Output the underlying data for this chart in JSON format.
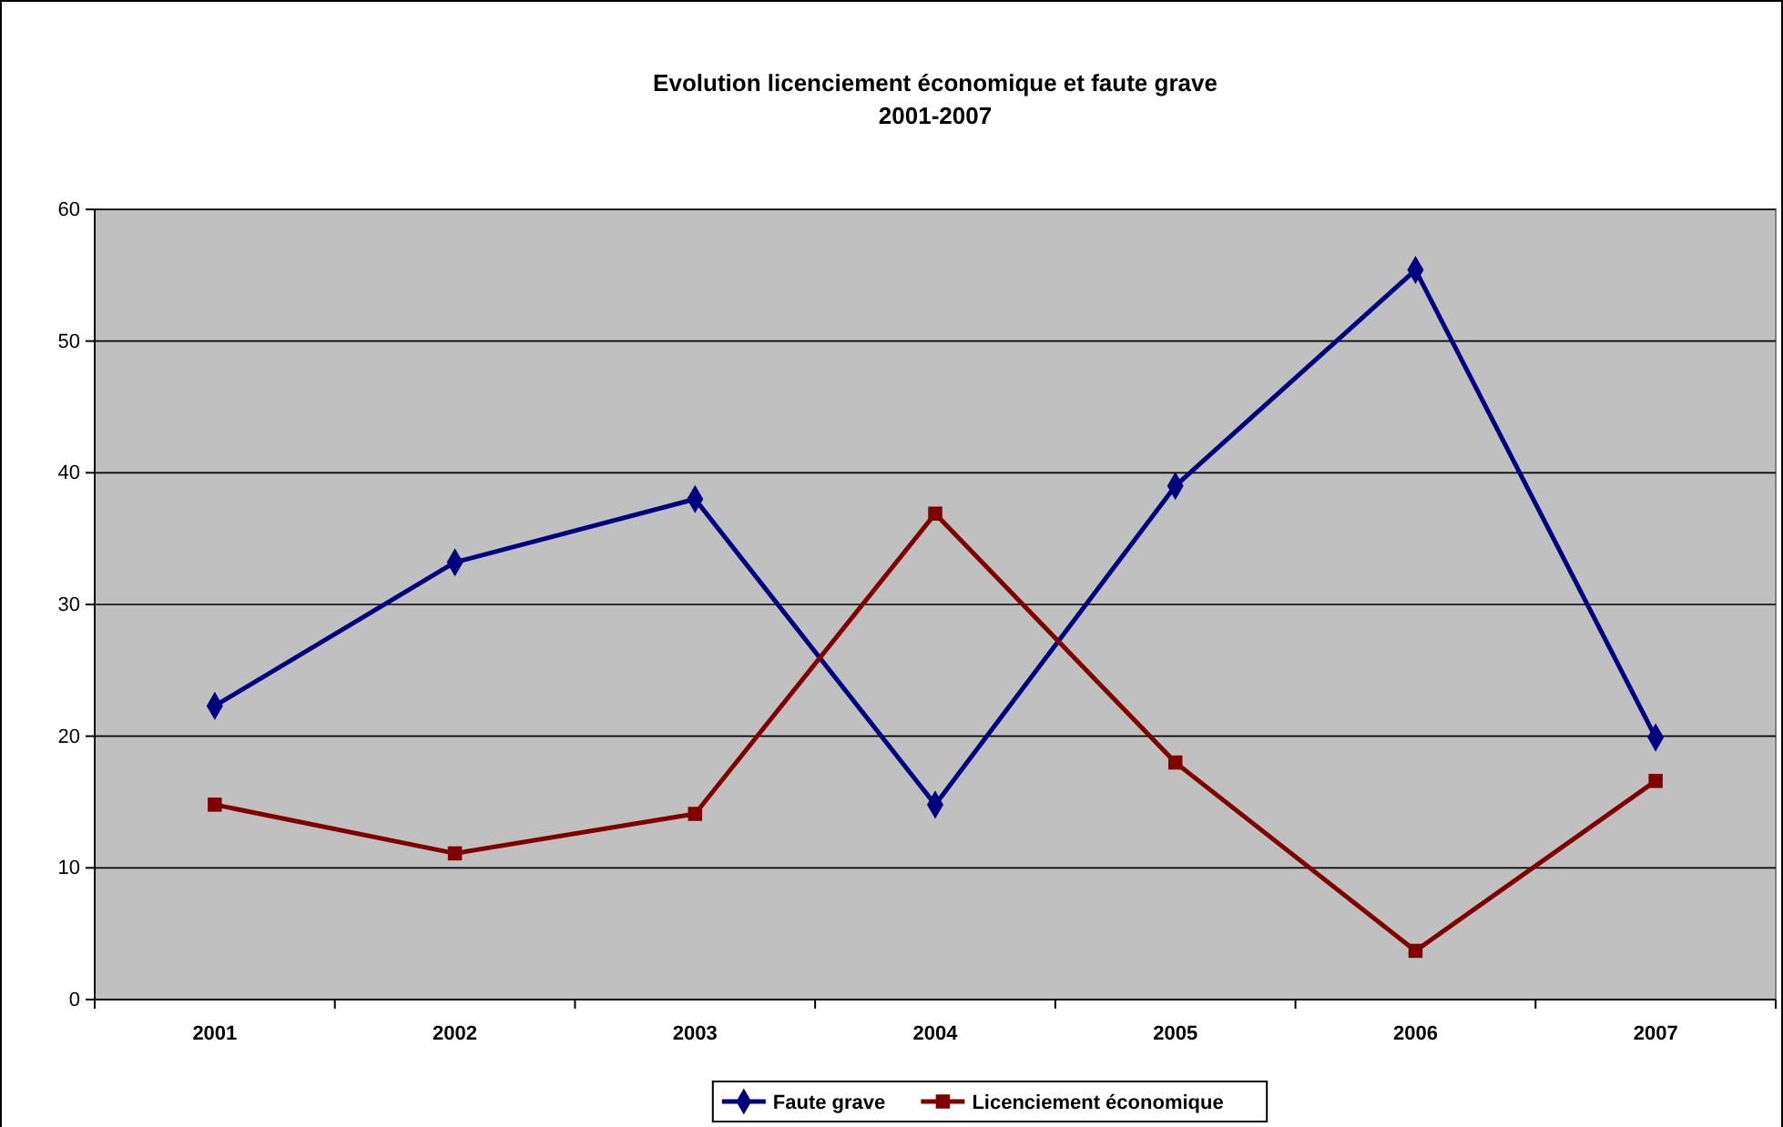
{
  "chart_data": {
    "type": "line",
    "title": "Evolution licenciement économique et faute grave",
    "subtitle": "2001-2007",
    "categories": [
      "2001",
      "2002",
      "2003",
      "2004",
      "2005",
      "2006",
      "2007"
    ],
    "series": [
      {
        "name": "Faute grave",
        "color": "#000080",
        "marker": "diamond",
        "values": [
          22.3,
          33.2,
          38.0,
          14.8,
          39.0,
          55.4,
          19.9
        ]
      },
      {
        "name": "Licenciement économique",
        "color": "#800000",
        "marker": "square",
        "values": [
          14.8,
          11.1,
          14.1,
          36.9,
          18.0,
          3.7,
          16.6
        ]
      }
    ],
    "ylim": [
      0,
      60
    ],
    "yticks": [
      0,
      10,
      20,
      30,
      40,
      50,
      60
    ],
    "grid": "y",
    "legend": "bottom",
    "line_style": "solid"
  }
}
